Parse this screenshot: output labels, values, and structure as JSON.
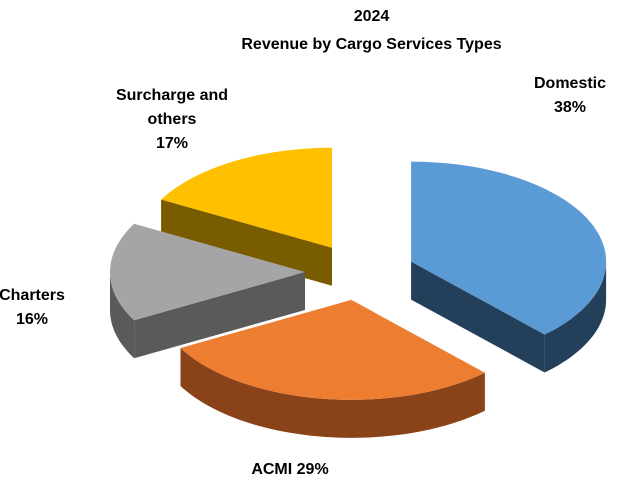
{
  "chart_data": {
    "type": "pie3d",
    "title": "2024",
    "subtitle": "Revenue by Cargo Services Types",
    "categories": [
      "Domestic",
      "ACMI",
      "Charters",
      "Surcharge and others"
    ],
    "values": [
      38,
      29,
      16,
      17
    ],
    "value_labels": [
      "38%",
      "29%",
      "16%",
      "17%"
    ],
    "colors": [
      "#5b9bd5",
      "#ed7d31",
      "#a5a5a5",
      "#ffc000"
    ],
    "side_colors": [
      "#243f5a",
      "#8a4218",
      "#5a5a5a",
      "#7a5c00"
    ]
  }
}
